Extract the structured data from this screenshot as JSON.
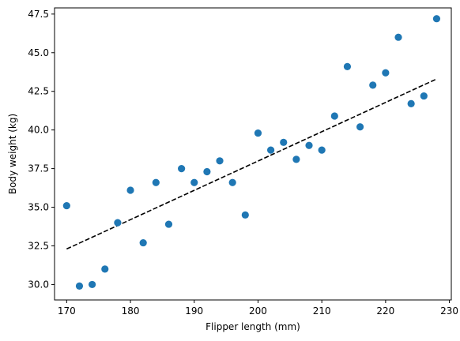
{
  "chart_data": {
    "type": "scatter",
    "title": "",
    "xlabel": "Flipper length (mm)",
    "ylabel": "Body weight (kg)",
    "xlim": [
      168.1,
      230.3
    ],
    "ylim": [
      29.0,
      47.9
    ],
    "xticks": [
      170,
      180,
      190,
      200,
      210,
      220,
      230
    ],
    "xtick_labels": [
      "170",
      "180",
      "190",
      "200",
      "210",
      "220",
      "230"
    ],
    "yticks": [
      30.0,
      32.5,
      35.0,
      37.5,
      40.0,
      42.5,
      45.0,
      47.5
    ],
    "ytick_labels": [
      "30.0",
      "32.5",
      "35.0",
      "37.5",
      "40.0",
      "42.5",
      "45.0",
      "47.5"
    ],
    "grid": false,
    "series": [
      {
        "kind": "points",
        "color": "#1f77b4",
        "x": [
          170,
          172,
          174,
          176,
          178,
          180,
          182,
          184,
          186,
          188,
          190,
          192,
          194,
          196,
          198,
          200,
          202,
          204,
          206,
          208,
          210,
          212,
          214,
          216,
          218,
          220,
          222,
          224,
          226,
          228
        ],
        "y": [
          35.1,
          29.9,
          30.0,
          31.0,
          34.0,
          36.1,
          32.7,
          36.6,
          33.9,
          37.5,
          36.6,
          37.3,
          38.0,
          36.6,
          34.5,
          39.8,
          38.7,
          39.2,
          38.1,
          39.0,
          38.7,
          40.9,
          44.1,
          40.2,
          42.9,
          43.7,
          46.0,
          41.7,
          42.2,
          47.2
        ]
      },
      {
        "kind": "fit-line",
        "color": "#000000",
        "dash": "dashed",
        "x": [
          170,
          228
        ],
        "y": [
          32.3,
          43.3
        ]
      }
    ]
  }
}
